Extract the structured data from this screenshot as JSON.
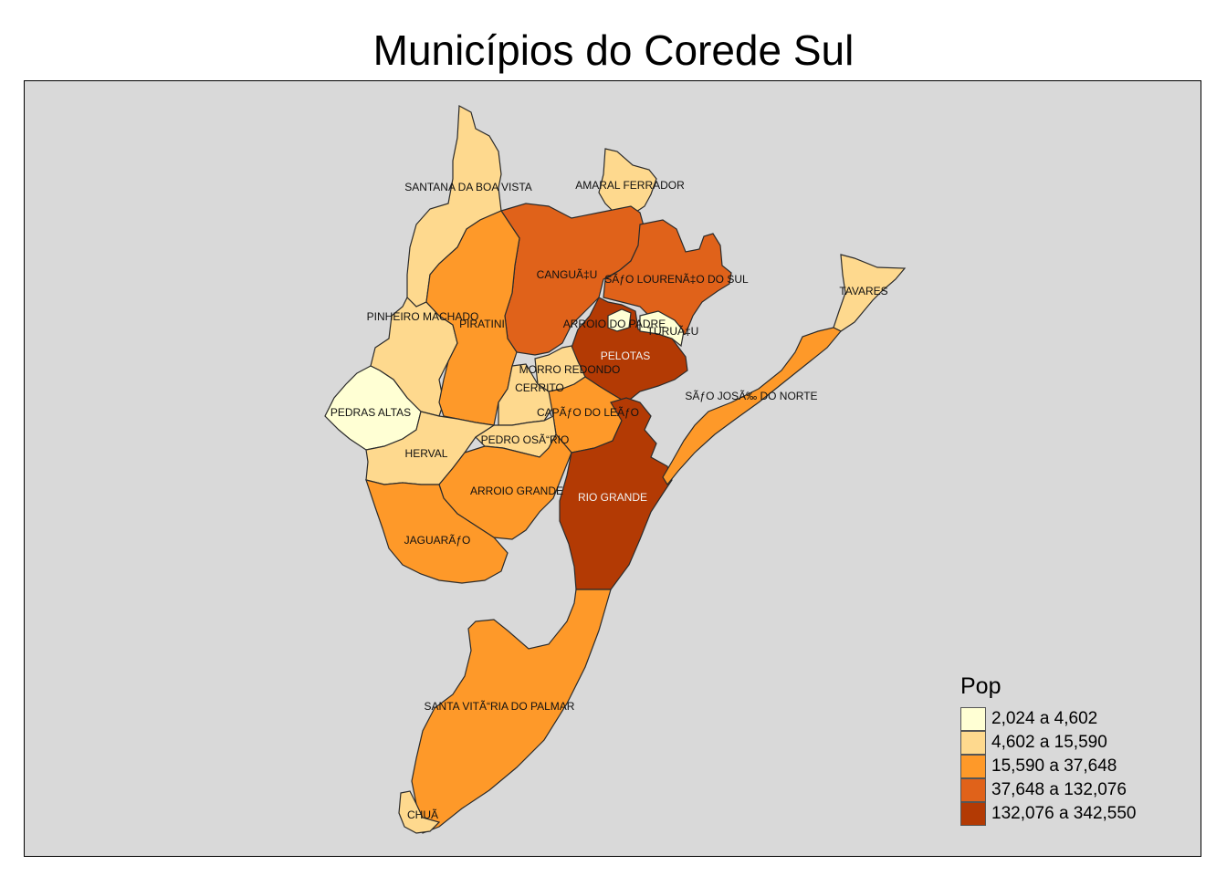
{
  "title": "Municípios do Corede Sul",
  "legend": {
    "title": "Pop",
    "classes": [
      {
        "label": "2,024 a 4,602",
        "color": "#ffffd4"
      },
      {
        "label": "4,602 a 15,590",
        "color": "#fed98e"
      },
      {
        "label": "15,590 a 37,648",
        "color": "#fe9929"
      },
      {
        "label": "37,648 a 132,076",
        "color": "#e0621a"
      },
      {
        "label": "132,076 a 342,550",
        "color": "#b33a04"
      }
    ]
  },
  "municipalities": [
    {
      "name": "SANTANA DA BOA VISTA",
      "class": 1
    },
    {
      "name": "AMARAL FERRADOR",
      "class": 1
    },
    {
      "name": "CANGUÃ‡U",
      "class": 3
    },
    {
      "name": "SÃƒO LOURENÃ‡O DO SUL",
      "class": 3
    },
    {
      "name": "TAVARES",
      "class": 1
    },
    {
      "name": "PINHEIRO MACHADO",
      "class": 1
    },
    {
      "name": "PIRATINI",
      "class": 2
    },
    {
      "name": "ARROIO DO PADRE",
      "class": 0
    },
    {
      "name": "TURUÃ‡U",
      "class": 0
    },
    {
      "name": "PELOTAS",
      "class": 4
    },
    {
      "name": "MORRO REDONDO",
      "class": 1
    },
    {
      "name": "CERRITO",
      "class": 1
    },
    {
      "name": "SÃƒO JOSÃ‰ DO NORTE",
      "class": 2
    },
    {
      "name": "PEDRAS ALTAS",
      "class": 0
    },
    {
      "name": "CAPÃƒO DO LEÃƒO",
      "class": 2
    },
    {
      "name": "PEDRO OSÃ“RIO",
      "class": 1
    },
    {
      "name": "HERVAL",
      "class": 1
    },
    {
      "name": "ARROIO GRANDE",
      "class": 2
    },
    {
      "name": "RIO GRANDE",
      "class": 4
    },
    {
      "name": "JAGUARÃƒO",
      "class": 2
    },
    {
      "name": "SANTA VITÃ“RIA DO PALMAR",
      "class": 2
    },
    {
      "name": "CHUÃ",
      "class": 1
    }
  ]
}
